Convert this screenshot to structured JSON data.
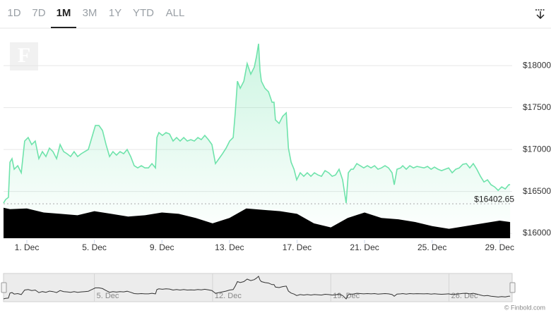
{
  "tabs": [
    "1D",
    "7D",
    "1M",
    "3M",
    "1Y",
    "YTD",
    "ALL"
  ],
  "active_tab": "1M",
  "logo": "F",
  "credit": "© Finbold.com",
  "chart_data": [
    {
      "type": "line",
      "color": "#6fe3ab",
      "x": [
        -0.38,
        -0.26,
        -0.09,
        0.0,
        0.12,
        0.25,
        0.46,
        0.67,
        0.87,
        1.08,
        1.29,
        1.5,
        1.71,
        1.92,
        2.13,
        2.34,
        2.55,
        2.76,
        2.97,
        3.18,
        3.38,
        3.59,
        3.8,
        4.01,
        4.22,
        4.43,
        4.64,
        4.85,
        5.06,
        5.27,
        5.48,
        5.69,
        5.9,
        6.1,
        6.31,
        6.52,
        6.73,
        6.94,
        7.15,
        7.36,
        7.57,
        7.78,
        7.99,
        8.2,
        8.41,
        8.62,
        8.7,
        8.82,
        9.03,
        9.24,
        9.45,
        9.66,
        9.87,
        10.08,
        10.29,
        10.5,
        10.71,
        10.92,
        11.13,
        11.33,
        11.54,
        11.75,
        11.96,
        12.17,
        12.38,
        12.59,
        12.8,
        13.01,
        13.22,
        13.34,
        13.47,
        13.64,
        13.85,
        14.05,
        14.26,
        14.47,
        14.6,
        14.72,
        14.81,
        14.89,
        15.1,
        15.31,
        15.52,
        15.64,
        15.72,
        15.94,
        16.15,
        16.36,
        16.49,
        16.65,
        16.82,
        16.98,
        17.19,
        17.4,
        17.61,
        17.82,
        18.03,
        18.24,
        18.45,
        18.66,
        18.87,
        19.08,
        19.28,
        19.49,
        19.7,
        19.91,
        20.04,
        20.2,
        20.33,
        20.54,
        20.74,
        20.95,
        21.17,
        21.38,
        21.59,
        21.79,
        22.0,
        22.21,
        22.42,
        22.63,
        22.76,
        22.92,
        23.14,
        23.26,
        23.47,
        23.68,
        23.89,
        24.1,
        24.31,
        24.52,
        24.73,
        24.94,
        25.14,
        25.35,
        25.56,
        25.77,
        25.98,
        26.19,
        26.4,
        26.61,
        26.82,
        27.03,
        27.23,
        27.44,
        27.65,
        27.86,
        28.07,
        28.28,
        28.49,
        28.7,
        28.91,
        29.12,
        29.33,
        29.54,
        29.62
      ],
      "values": [
        16361,
        16403,
        16429,
        16849,
        16891,
        16765,
        16807,
        16723,
        17101,
        17143,
        17059,
        17101,
        16891,
        16975,
        16916,
        17017,
        16975,
        16891,
        17059,
        16975,
        16950,
        16916,
        16975,
        16916,
        16950,
        16975,
        17000,
        17143,
        17286,
        17286,
        17227,
        17059,
        16916,
        16975,
        16933,
        16975,
        16950,
        17000,
        16916,
        16807,
        16781,
        16807,
        16781,
        16781,
        16832,
        16781,
        17143,
        17202,
        17168,
        17202,
        17185,
        17101,
        17143,
        17101,
        17143,
        17101,
        17118,
        17101,
        17143,
        17118,
        17168,
        17118,
        17059,
        16832,
        16891,
        16950,
        17017,
        17101,
        17143,
        17437,
        17815,
        17731,
        17815,
        18025,
        17899,
        17983,
        18109,
        18261,
        17941,
        17815,
        17731,
        17689,
        17563,
        17563,
        17353,
        17311,
        17395,
        17437,
        17017,
        16849,
        16765,
        16639,
        16723,
        16681,
        16723,
        16681,
        16723,
        16697,
        16681,
        16748,
        16723,
        16681,
        16697,
        16765,
        16639,
        16361,
        16723,
        16765,
        16765,
        16832,
        16807,
        16781,
        16807,
        16781,
        16807,
        16765,
        16781,
        16807,
        16781,
        16723,
        16580,
        16765,
        16781,
        16807,
        16765,
        16807,
        16781,
        16798,
        16790,
        16781,
        16798,
        16765,
        16790,
        16765,
        16748,
        16765,
        16781,
        16723,
        16765,
        16781,
        16824,
        16832,
        16781,
        16832,
        16765,
        16681,
        16613,
        16639,
        16580,
        16555,
        16513,
        16555,
        16529,
        16580,
        16580
      ],
      "xlim": [
        -0.38,
        29.74
      ],
      "xticks": [
        {
          "value": 1,
          "label": "1. Dec"
        },
        {
          "value": 5,
          "label": "5. Dec"
        },
        {
          "value": 9,
          "label": "9. Dec"
        },
        {
          "value": 13,
          "label": "13. Dec"
        },
        {
          "value": 17,
          "label": "17. Dec"
        },
        {
          "value": 21,
          "label": "21. Dec"
        },
        {
          "value": 25,
          "label": "25. Dec"
        },
        {
          "value": 29,
          "label": "29. Dec"
        }
      ],
      "ylim": [
        15925,
        18430
      ],
      "yticks": [
        {
          "value": 16000,
          "label": "$16000"
        },
        {
          "value": 16500,
          "label": "$16500"
        },
        {
          "value": 17000,
          "label": "$17000"
        },
        {
          "value": 17500,
          "label": "$17500"
        },
        {
          "value": 18000,
          "label": "$18000"
        }
      ],
      "grid": true,
      "last_price": {
        "value": 16402.65,
        "label": "$16402.65"
      }
    },
    {
      "type": "area",
      "color": "#000000",
      "x": [
        -0.38,
        0,
        1,
        2,
        3,
        4,
        5,
        6,
        7,
        8,
        9,
        10,
        11,
        12,
        13,
        14,
        15,
        16,
        17,
        18,
        19,
        20,
        21,
        22,
        23,
        24,
        25,
        26,
        27,
        28,
        29,
        29.62
      ],
      "values": [
        45,
        43,
        44,
        38,
        36,
        34,
        40,
        36,
        32,
        34,
        38,
        36,
        30,
        22,
        30,
        44,
        42,
        40,
        36,
        22,
        16,
        30,
        38,
        30,
        28,
        24,
        18,
        14,
        18,
        22,
        26,
        24
      ],
      "ylim": [
        0,
        50
      ]
    },
    {
      "type": "navigator",
      "xticks": [
        {
          "value": 5,
          "label": "5. Dec"
        },
        {
          "value": 12,
          "label": "12. Dec"
        },
        {
          "value": 19,
          "label": "19. Dec"
        },
        {
          "value": 26,
          "label": "26. Dec"
        }
      ]
    }
  ]
}
